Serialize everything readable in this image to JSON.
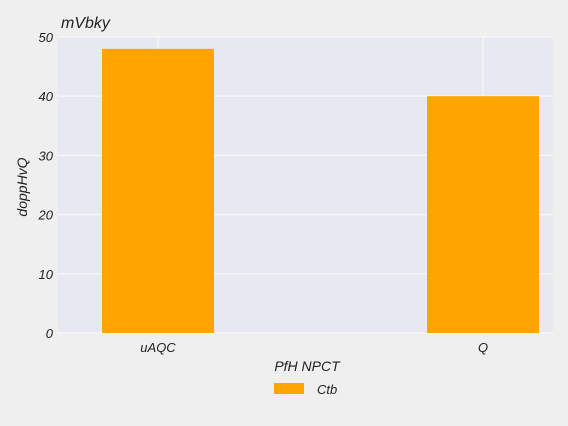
{
  "chart_data": {
    "type": "bar",
    "title": "mVbky",
    "xlabel": "PfH NPCT",
    "ylabel": "doppHvQ",
    "categories": [
      "uAQC",
      "Q"
    ],
    "series": [
      {
        "name": "Ctb",
        "values": [
          48,
          40
        ]
      }
    ],
    "ylim": [
      0,
      50
    ],
    "yticks": [
      0,
      10,
      20,
      30,
      40,
      50
    ],
    "grid": true,
    "legend_position": "bottom-center",
    "colors": {
      "plot_background": "#e8e8f0",
      "grid": "#f7f7fb",
      "bar": "#ffa500",
      "figure_background": "#efefef"
    }
  }
}
